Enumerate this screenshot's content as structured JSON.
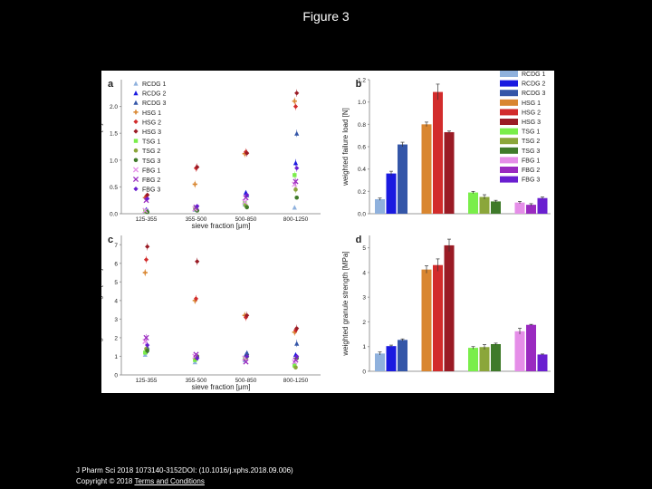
{
  "slide_title": "Figure 3",
  "footer": {
    "citation": "J Pharm Sci 2018 1073140-3152DOI: (10.1016/j.xphs.2018.09.006)",
    "copyright": "Copyright © 2018",
    "link": "Terms and Conditions"
  },
  "groups": [
    {
      "name": "RCDG 1",
      "color": "#8fb1dd",
      "marker": "triangle"
    },
    {
      "name": "RCDG 2",
      "color": "#1a1ae0",
      "marker": "triangle"
    },
    {
      "name": "RCDG 3",
      "color": "#3456a8",
      "marker": "triangle"
    },
    {
      "name": "HSG 1",
      "color": "#d98630",
      "marker": "plus"
    },
    {
      "name": "HSG 2",
      "color": "#d22c2c",
      "marker": "diamond"
    },
    {
      "name": "HSG 3",
      "color": "#9a1b25",
      "marker": "diamond"
    },
    {
      "name": "TSG 1",
      "color": "#7aee4a",
      "marker": "square"
    },
    {
      "name": "TSG 2",
      "color": "#8ba63a",
      "marker": "circle"
    },
    {
      "name": "TSG 3",
      "color": "#3f7a2a",
      "marker": "circle"
    },
    {
      "name": "FBG 1",
      "color": "#e58ee8",
      "marker": "x"
    },
    {
      "name": "FBG 2",
      "color": "#9a2ac0",
      "marker": "x"
    },
    {
      "name": "FBG 3",
      "color": "#6a1fd0",
      "marker": "diamond"
    }
  ],
  "chart_data": [
    {
      "panel": "a",
      "type": "scatter",
      "xlabel": "sieve fraction [μm]",
      "ylabel": "failure load [N]",
      "categories": [
        "125-355",
        "355-500",
        "500-850",
        "800-1250"
      ],
      "ylim": [
        0,
        2.5
      ],
      "yticks": [
        0.0,
        0.5,
        1.0,
        1.5,
        2.0
      ],
      "series": [
        {
          "name": "RCDG 1",
          "values": [
            0.05,
            0.08,
            0.18,
            0.12
          ]
        },
        {
          "name": "RCDG 2",
          "values": [
            0.08,
            0.12,
            0.4,
            0.95
          ]
        },
        {
          "name": "RCDG 3",
          "values": [
            0.07,
            0.1,
            0.35,
            1.5
          ]
        },
        {
          "name": "HSG 1",
          "values": [
            0.3,
            0.55,
            1.12,
            2.1
          ]
        },
        {
          "name": "HSG 2",
          "values": [
            0.32,
            0.85,
            1.15,
            2.0
          ]
        },
        {
          "name": "HSG 3",
          "values": [
            0.35,
            0.87,
            1.13,
            2.25
          ]
        },
        {
          "name": "TSG 1",
          "values": [
            0.05,
            0.1,
            0.2,
            0.72
          ]
        },
        {
          "name": "TSG 2",
          "values": [
            0.04,
            0.08,
            0.15,
            0.45
          ]
        },
        {
          "name": "TSG 3",
          "values": [
            0.03,
            0.06,
            0.12,
            0.3
          ]
        },
        {
          "name": "FBG 1",
          "values": [
            0.06,
            0.09,
            0.22,
            0.55
          ]
        },
        {
          "name": "FBG 2",
          "values": [
            0.25,
            0.12,
            0.3,
            0.6
          ]
        },
        {
          "name": "FBG 3",
          "values": [
            0.28,
            0.14,
            0.35,
            0.85
          ]
        }
      ]
    },
    {
      "panel": "b",
      "type": "bar",
      "ylabel": "weighted failure load [N]",
      "ylim": [
        0,
        1.2
      ],
      "yticks": [
        0.0,
        0.2,
        0.4,
        0.6,
        0.8,
        1.0,
        1.2
      ],
      "values": [
        0.13,
        0.36,
        0.62,
        0.8,
        1.09,
        0.73,
        0.19,
        0.15,
        0.11,
        0.1,
        0.08,
        0.14
      ],
      "errors": [
        0.01,
        0.02,
        0.02,
        0.02,
        0.07,
        0.01,
        0.01,
        0.02,
        0.01,
        0.01,
        0.01,
        0.01
      ]
    },
    {
      "panel": "c",
      "type": "scatter",
      "xlabel": "sieve fraction [μm]",
      "ylabel": "granule strength [MPa]",
      "categories": [
        "125-355",
        "355-500",
        "500-850",
        "800-1250"
      ],
      "ylim": [
        0,
        7.5
      ],
      "yticks": [
        0,
        1,
        2,
        3,
        4,
        5,
        6,
        7
      ],
      "series": [
        {
          "name": "RCDG 1",
          "values": [
            1.1,
            0.7,
            0.8,
            0.6
          ]
        },
        {
          "name": "RCDG 2",
          "values": [
            1.3,
            0.9,
            1.1,
            1.1
          ]
        },
        {
          "name": "RCDG 3",
          "values": [
            1.5,
            1.0,
            1.2,
            1.7
          ]
        },
        {
          "name": "HSG 1",
          "values": [
            5.5,
            4.0,
            3.2,
            2.3
          ]
        },
        {
          "name": "HSG 2",
          "values": [
            6.2,
            4.1,
            3.1,
            2.4
          ]
        },
        {
          "name": "HSG 3",
          "values": [
            6.9,
            6.1,
            3.2,
            2.5
          ]
        },
        {
          "name": "TSG 1",
          "values": [
            1.2,
            0.8,
            0.9,
            0.5
          ]
        },
        {
          "name": "TSG 2",
          "values": [
            1.4,
            0.9,
            0.9,
            0.4
          ]
        },
        {
          "name": "TSG 3",
          "values": [
            1.3,
            1.0,
            1.0,
            0.9
          ]
        },
        {
          "name": "FBG 1",
          "values": [
            1.8,
            1.0,
            0.9,
            0.7
          ]
        },
        {
          "name": "FBG 2",
          "values": [
            2.0,
            1.1,
            0.7,
            0.8
          ]
        },
        {
          "name": "FBG 3",
          "values": [
            1.6,
            0.9,
            1.0,
            1.0
          ]
        }
      ]
    },
    {
      "panel": "d",
      "type": "bar",
      "ylabel": "weighted granule strength [MPa]",
      "ylim": [
        0,
        5.5
      ],
      "yticks": [
        0,
        1,
        2,
        3,
        4,
        5
      ],
      "values": [
        0.72,
        1.02,
        1.27,
        4.12,
        4.3,
        5.1,
        0.95,
        0.98,
        1.1,
        1.62,
        1.88,
        0.68
      ],
      "errors": [
        0.06,
        0.04,
        0.04,
        0.15,
        0.25,
        0.25,
        0.05,
        0.1,
        0.04,
        0.12,
        0.02,
        0.02
      ]
    }
  ]
}
